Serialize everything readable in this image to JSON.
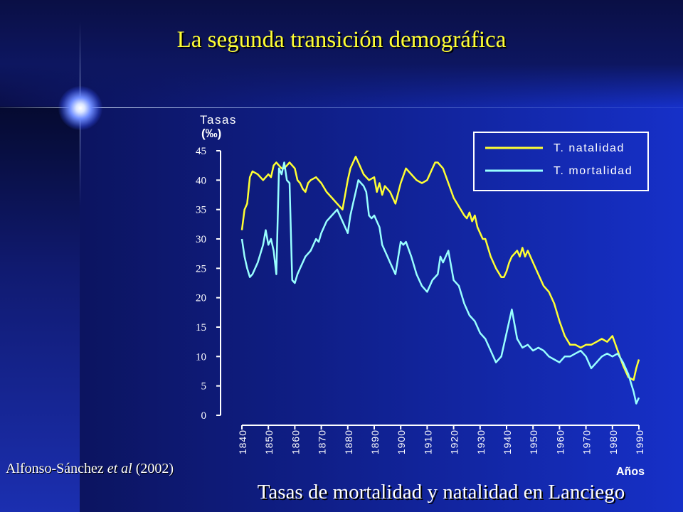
{
  "slide": {
    "title": "La segunda transición demográfica",
    "subtitle": "Tasas de mortalidad y natalidad en Lanciego",
    "citation": {
      "authors": "Alfonso-Sánchez",
      "etal": "et al",
      "year": "(2002)"
    }
  },
  "colors": {
    "natalidad": "#ffff33",
    "mortalidad": "#99ffff",
    "axis": "#ffffff"
  },
  "chart_data": {
    "type": "line",
    "ylabel_line1": "Tasas",
    "ylabel_line2": "(‰)",
    "xlabel": "Años",
    "ylim": [
      0,
      45
    ],
    "yticks": [
      0,
      5,
      10,
      15,
      20,
      25,
      30,
      35,
      40,
      45
    ],
    "xlim": [
      1840,
      1990
    ],
    "xticks": [
      "1840",
      "1850",
      "1860",
      "1870",
      "1880",
      "1890",
      "1900",
      "1910",
      "1920",
      "1930",
      "1940",
      "1950",
      "1960",
      "1970",
      "1980",
      "1990"
    ],
    "grid": false,
    "legend_position": "top-right",
    "series": [
      {
        "name": "T. natalidad",
        "color": "#ffff33",
        "x": [
          1840,
          1841,
          1842,
          1843,
          1844,
          1846,
          1848,
          1850,
          1851,
          1852,
          1853,
          1854,
          1855,
          1856,
          1858,
          1860,
          1861,
          1862,
          1863,
          1864,
          1865,
          1866,
          1868,
          1870,
          1872,
          1874,
          1876,
          1878,
          1880,
          1881,
          1882,
          1883,
          1884,
          1886,
          1888,
          1890,
          1891,
          1892,
          1893,
          1894,
          1895,
          1896,
          1898,
          1900,
          1902,
          1904,
          1906,
          1908,
          1910,
          1912,
          1913,
          1914,
          1916,
          1918,
          1920,
          1922,
          1924,
          1925,
          1926,
          1927,
          1928,
          1929,
          1930,
          1931,
          1932,
          1934,
          1936,
          1938,
          1939,
          1940,
          1941,
          1942,
          1944,
          1945,
          1946,
          1947,
          1948,
          1950,
          1952,
          1954,
          1956,
          1958,
          1960,
          1962,
          1964,
          1966,
          1968,
          1970,
          1972,
          1974,
          1976,
          1978,
          1980,
          1982,
          1984,
          1986,
          1988,
          1989,
          1990
        ],
        "y": [
          31.5,
          35,
          36,
          40.5,
          41.5,
          41,
          40,
          41,
          40.5,
          42.5,
          43,
          42.5,
          42,
          42,
          43,
          42,
          40,
          39.5,
          38.5,
          38,
          39.5,
          40,
          40.5,
          39.5,
          38,
          37,
          36,
          35,
          40,
          42,
          43,
          44,
          43,
          41,
          40,
          40.5,
          38,
          39.5,
          37.5,
          39,
          38.5,
          38,
          36,
          39.5,
          42,
          41,
          40,
          39.5,
          40,
          42,
          43,
          43,
          42,
          39.5,
          37,
          35.5,
          34,
          33.5,
          34.5,
          33,
          34,
          32,
          31,
          30,
          30,
          27,
          25,
          23.5,
          23.5,
          24.5,
          26,
          27,
          28,
          27,
          28.5,
          27,
          28,
          26,
          24,
          22,
          21,
          19,
          16,
          13.5,
          12,
          12,
          11.5,
          12,
          12,
          12.5,
          13,
          12.5,
          13.5,
          11,
          8.5,
          6.5,
          6,
          8,
          9.5
        ]
      },
      {
        "name": "T. mortalidad",
        "color": "#99ffff",
        "x": [
          1840,
          1841,
          1842,
          1843,
          1844,
          1846,
          1848,
          1849,
          1850,
          1851,
          1852,
          1853,
          1854,
          1855,
          1856,
          1857,
          1858,
          1859,
          1860,
          1861,
          1862,
          1864,
          1866,
          1868,
          1869,
          1870,
          1872,
          1874,
          1876,
          1878,
          1880,
          1881,
          1882,
          1883,
          1884,
          1886,
          1887,
          1888,
          1889,
          1890,
          1891,
          1892,
          1893,
          1894,
          1895,
          1896,
          1898,
          1900,
          1901,
          1902,
          1904,
          1906,
          1908,
          1910,
          1911,
          1912,
          1914,
          1915,
          1916,
          1918,
          1920,
          1922,
          1924,
          1926,
          1928,
          1930,
          1932,
          1934,
          1936,
          1938,
          1939,
          1940,
          1942,
          1944,
          1946,
          1948,
          1950,
          1952,
          1954,
          1956,
          1958,
          1960,
          1962,
          1964,
          1966,
          1968,
          1970,
          1972,
          1974,
          1976,
          1978,
          1980,
          1982,
          1984,
          1986,
          1988,
          1989,
          1990
        ],
        "y": [
          30,
          27,
          25,
          23.5,
          24,
          26,
          29,
          31.5,
          29,
          30,
          28,
          24,
          42,
          41,
          43,
          40,
          39.5,
          23,
          22.5,
          24,
          25,
          27,
          28,
          30,
          29.5,
          31,
          33,
          34,
          35,
          33,
          31,
          34,
          36,
          38,
          40,
          39,
          38,
          34,
          33.5,
          34,
          33,
          32,
          29,
          28,
          27,
          26,
          24,
          29.5,
          29,
          29.5,
          27,
          24,
          22,
          21,
          22,
          23,
          24,
          27,
          26,
          28,
          23,
          22,
          19,
          17,
          16,
          14,
          13,
          11,
          9,
          10,
          12,
          14,
          18,
          13,
          11.5,
          12,
          11,
          11.5,
          11,
          10,
          9.5,
          9,
          10,
          10,
          10.5,
          11,
          10,
          8,
          9,
          10,
          10.5,
          10,
          10.5,
          9,
          7,
          4,
          2,
          3
        ]
      }
    ]
  }
}
